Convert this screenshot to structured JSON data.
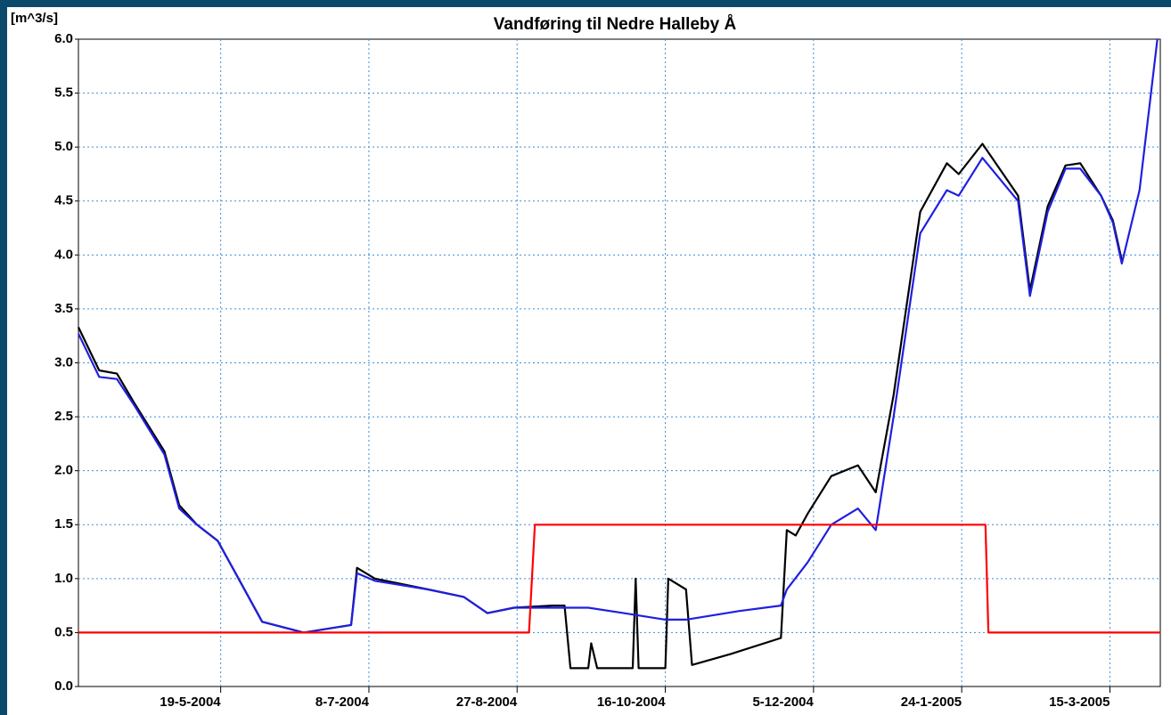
{
  "chart_data": {
    "type": "line",
    "title": "Vandføring til Nedre Halleby Å",
    "y_label": "[m^3/s]",
    "xlim": [
      "2004-04-01",
      "2005-04-01"
    ],
    "xticks": [
      {
        "value": "2004-05-19",
        "label": "19-5-2004"
      },
      {
        "value": "2004-07-08",
        "label": "8-7-2004"
      },
      {
        "value": "2004-08-27",
        "label": "27-8-2004"
      },
      {
        "value": "2004-10-16",
        "label": "16-10-2004"
      },
      {
        "value": "2004-12-05",
        "label": "5-12-2004"
      },
      {
        "value": "2005-01-24",
        "label": "24-1-2005"
      },
      {
        "value": "2005-03-15",
        "label": "15-3-2005"
      }
    ],
    "ylim": [
      0,
      6
    ],
    "yticks": [
      {
        "value": 0,
        "label": "0.0"
      },
      0.5,
      {
        "value": 1,
        "label": "1.0"
      },
      1.5,
      {
        "value": 2,
        "label": "2.0"
      },
      2.5,
      {
        "value": 3,
        "label": "3.0"
      },
      3.5,
      {
        "value": 4,
        "label": "4.0"
      },
      4.5,
      {
        "value": 5,
        "label": "5.0"
      },
      5.5,
      {
        "value": 6,
        "label": "6.0"
      }
    ],
    "grid": true,
    "series": [
      {
        "color": "#000000",
        "x": [
          "2004-04-01",
          "2004-04-08",
          "2004-04-14",
          "2004-04-20",
          "2004-04-30",
          "2004-05-05",
          "2004-05-11",
          "2004-05-18",
          "2004-05-23",
          "2004-06-02",
          "2004-06-16",
          "2004-07-02",
          "2004-07-04",
          "2004-07-10",
          "2004-07-28",
          "2004-08-09",
          "2004-08-17",
          "2004-08-26",
          "2004-09-08",
          "2004-09-12",
          "2004-09-14",
          "2004-09-20",
          "2004-09-21",
          "2004-09-23",
          "2004-10-05",
          "2004-10-06",
          "2004-10-07",
          "2004-10-16",
          "2004-10-17",
          "2004-10-23",
          "2004-10-25",
          "2004-11-07",
          "2004-11-24",
          "2004-11-26",
          "2004-11-29",
          "2004-12-03",
          "2004-12-11",
          "2004-12-20",
          "2004-12-26",
          "2005-01-01",
          "2005-01-10",
          "2005-01-19",
          "2005-01-23",
          "2005-01-31",
          "2005-02-12",
          "2005-02-16",
          "2005-02-22",
          "2005-02-28",
          "2005-03-05",
          "2005-03-12",
          "2005-03-16",
          "2005-03-19"
        ],
        "values": [
          3.33,
          2.93,
          2.9,
          2.62,
          2.18,
          1.68,
          1.5,
          1.35,
          1.1,
          0.6,
          0.5,
          0.57,
          1.1,
          1.0,
          0.9,
          0.83,
          0.68,
          0.73,
          0.75,
          0.75,
          0.17,
          0.17,
          0.4,
          0.17,
          0.17,
          1.0,
          0.17,
          0.17,
          1.0,
          0.9,
          0.2,
          0.3,
          0.45,
          1.45,
          1.4,
          1.6,
          1.95,
          2.05,
          1.8,
          2.7,
          4.4,
          4.85,
          4.75,
          5.03,
          4.55,
          3.67,
          4.45,
          4.83,
          4.85,
          4.55,
          4.32,
          3.95
        ]
      },
      {
        "color": "#1f1fe0",
        "x": [
          "2004-04-01",
          "2004-04-08",
          "2004-04-14",
          "2004-04-20",
          "2004-04-30",
          "2004-05-05",
          "2004-05-11",
          "2004-05-18",
          "2004-05-23",
          "2004-06-02",
          "2004-06-16",
          "2004-07-02",
          "2004-07-04",
          "2004-07-10",
          "2004-07-28",
          "2004-08-09",
          "2004-08-17",
          "2004-08-26",
          "2004-09-08",
          "2004-09-20",
          "2004-10-02",
          "2004-10-16",
          "2004-10-23",
          "2004-11-10",
          "2004-11-24",
          "2004-11-26",
          "2004-12-03",
          "2004-12-11",
          "2004-12-20",
          "2004-12-26",
          "2005-01-01",
          "2005-01-10",
          "2005-01-19",
          "2005-01-23",
          "2005-01-31",
          "2005-02-12",
          "2005-02-16",
          "2005-02-22",
          "2005-02-28",
          "2005-03-05",
          "2005-03-12",
          "2005-03-16",
          "2005-03-19",
          "2005-03-25",
          "2005-03-28",
          "2005-03-31"
        ],
        "values": [
          3.27,
          2.87,
          2.85,
          2.6,
          2.15,
          1.65,
          1.5,
          1.35,
          1.1,
          0.6,
          0.5,
          0.57,
          1.05,
          0.98,
          0.9,
          0.83,
          0.68,
          0.73,
          0.73,
          0.73,
          0.68,
          0.62,
          0.62,
          0.7,
          0.75,
          0.9,
          1.15,
          1.5,
          1.65,
          1.45,
          2.5,
          4.2,
          4.6,
          4.55,
          4.9,
          4.5,
          3.62,
          4.4,
          4.8,
          4.8,
          4.55,
          4.3,
          3.92,
          4.6,
          5.3,
          6.0
        ]
      },
      {
        "color": "#ff0000",
        "x": [
          "2004-04-01",
          "2004-08-31",
          "2004-09-02",
          "2005-02-01",
          "2005-02-02",
          "2005-04-01"
        ],
        "values": [
          0.5,
          0.5,
          1.5,
          1.5,
          0.5,
          0.5
        ]
      }
    ]
  }
}
